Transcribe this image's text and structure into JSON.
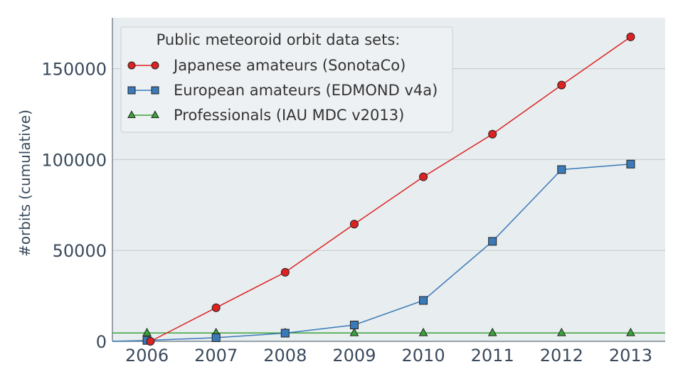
{
  "chart_data": {
    "type": "line",
    "ylabel": "#orbits (cumulative)",
    "xlabel": "",
    "x": [
      2006,
      2007,
      2008,
      2009,
      2010,
      2011,
      2012,
      2013
    ],
    "xlim": [
      2005.5,
      2013.5
    ],
    "ylim": [
      0,
      178000
    ],
    "yticks": [
      0,
      50000,
      100000,
      150000
    ],
    "grid": true,
    "legend": {
      "title": "Public meteoroid orbit data sets:",
      "placement": "upper-left"
    },
    "series": [
      {
        "name": "Japanese amateurs (SonotaCo)",
        "marker": "circle",
        "color": "#dd2222",
        "x": [
          2006.05,
          2007,
          2008,
          2009,
          2010,
          2011,
          2012,
          2013
        ],
        "values": [
          0,
          18500,
          38000,
          64500,
          90500,
          114000,
          141000,
          167500
        ]
      },
      {
        "name": "European amateurs (EDMOND v4a)",
        "marker": "square",
        "color": "#3a7ab8",
        "x": [
          2005.5,
          2006,
          2007,
          2008,
          2009,
          2010,
          2011,
          2012,
          2013
        ],
        "values": [
          0,
          500,
          2000,
          4500,
          9000,
          22500,
          55000,
          94500,
          97500
        ]
      },
      {
        "name": "Professionals (IAU MDC v2013)",
        "marker": "triangle",
        "color": "#3aa33a",
        "x": [
          2005.5,
          2006,
          2007,
          2008,
          2009,
          2010,
          2011,
          2012,
          2013,
          2013.5
        ],
        "values": [
          4600,
          4600,
          4600,
          4600,
          4600,
          4600,
          4600,
          4600,
          4600,
          4600
        ]
      }
    ]
  }
}
